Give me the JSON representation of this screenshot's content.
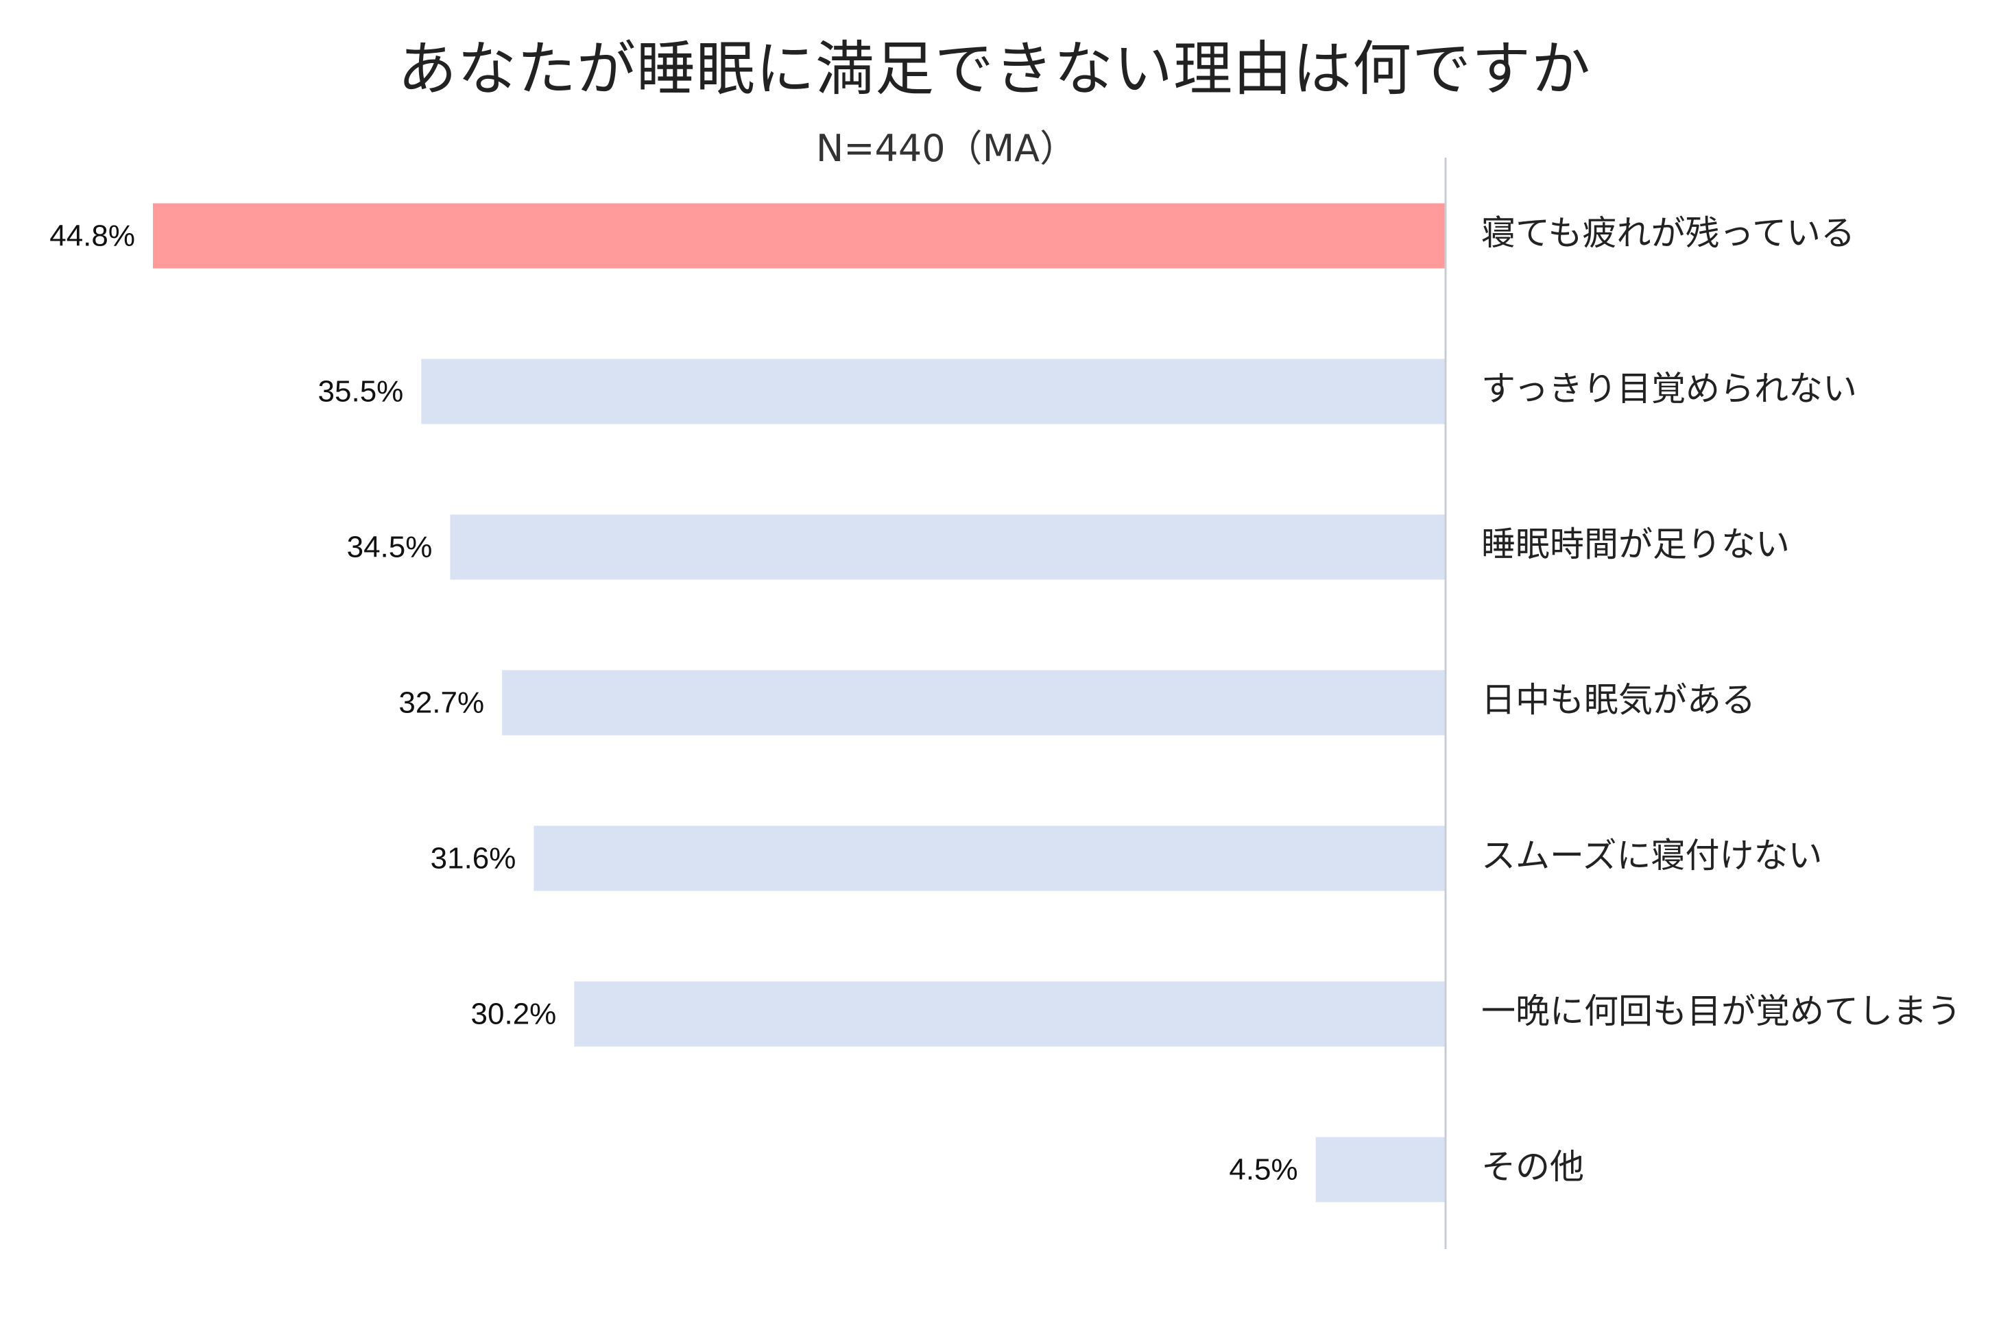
{
  "chart_data": {
    "type": "bar",
    "orientation": "horizontal",
    "direction": "right-to-left",
    "title": "あなたが睡眠に満足できない理由は何ですか",
    "subtitle": "N=440（MA）",
    "categories": [
      "寝ても疲れが残っている",
      "すっきり目覚められない",
      "睡眠時間が足りない",
      "日中も眠気がある",
      "スムーズに寝付けない",
      "一晩に何回も目が覚めてしまう",
      "その他"
    ],
    "values": [
      44.8,
      35.5,
      34.5,
      32.7,
      31.6,
      30.2,
      4.5
    ],
    "value_labels": [
      "44.8%",
      "35.5%",
      "34.5%",
      "32.7%",
      "31.6%",
      "30.2%",
      "4.5%"
    ],
    "highlight_index": 0,
    "colors": {
      "highlight": "#FF9B9B",
      "default": "#D9E2F3",
      "axis": "#C8CCD4"
    },
    "xlim": [
      0,
      44.8
    ],
    "grid": false,
    "legend": "none"
  }
}
